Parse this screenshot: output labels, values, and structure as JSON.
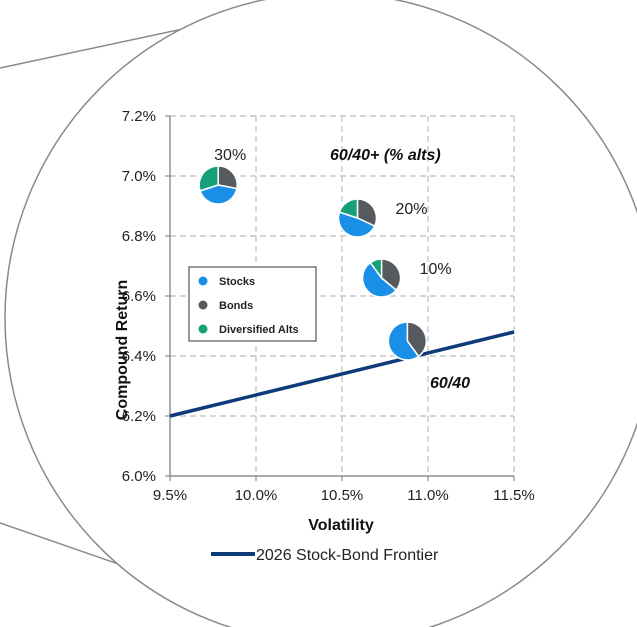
{
  "chart_data": {
    "type": "scatter",
    "xlabel": "Volatility",
    "ylabel": "Compound Return",
    "xlim": [
      9.5,
      11.5
    ],
    "ylim": [
      6.0,
      7.2
    ],
    "x_ticks": [
      "9.5%",
      "10.0%",
      "10.5%",
      "11.0%",
      "11.5%"
    ],
    "y_ticks": [
      "6.0%",
      "6.2%",
      "6.4%",
      "6.6%",
      "6.8%",
      "7.0%",
      "7.2%"
    ],
    "grid": true,
    "annotations": {
      "alts_title": "60/40+ (% alts)",
      "base_label": "60/40"
    },
    "pie_legend": {
      "position": "left",
      "items": [
        {
          "label": "Stocks",
          "color": "#1a8fe8"
        },
        {
          "label": "Bonds",
          "color": "#555a5f"
        },
        {
          "label": "Diversified Alts",
          "color": "#16a07a"
        }
      ]
    },
    "portfolios": [
      {
        "label": "",
        "volatility": 10.88,
        "return": 6.45,
        "alts_pct": 0,
        "weights": {
          "stocks": 60,
          "bonds": 40,
          "alts": 0
        }
      },
      {
        "label": "10%",
        "volatility": 10.73,
        "return": 6.66,
        "alts_pct": 10,
        "weights": {
          "stocks": 54,
          "bonds": 36,
          "alts": 10
        }
      },
      {
        "label": "20%",
        "volatility": 10.59,
        "return": 6.86,
        "alts_pct": 20,
        "weights": {
          "stocks": 48,
          "bonds": 32,
          "alts": 20
        }
      },
      {
        "label": "30%",
        "volatility": 9.78,
        "return": 6.97,
        "alts_pct": 30,
        "weights": {
          "stocks": 42,
          "bonds": 28,
          "alts": 30
        }
      }
    ],
    "series": [
      {
        "name": "2026 Stock-Bond Frontier",
        "color": "#0d3a78",
        "x": [
          9.5,
          11.5
        ],
        "y": [
          6.2,
          6.48
        ]
      }
    ]
  }
}
